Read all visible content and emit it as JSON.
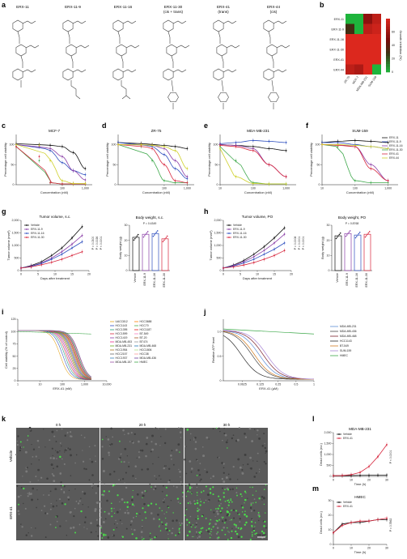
{
  "panel_letters": {
    "a": "a",
    "b": "b",
    "c": "c",
    "d": "d",
    "e": "e",
    "f": "f",
    "g": "g",
    "h": "h",
    "i": "i",
    "j": "j",
    "k": "k",
    "l": "l",
    "m": "m"
  },
  "colors": {
    "black": "#111111",
    "red": "#d7263d",
    "blue": "#2e4fbf",
    "purple": "#8b3fa8",
    "green": "#3da84a",
    "yellow": "#cfd02a",
    "gray": "#9aa0a6"
  },
  "compounds": [
    {
      "name": "ERX-11",
      "sub": ""
    },
    {
      "name": "ERX-11-9",
      "sub": ""
    },
    {
      "name": "ERX-11-16",
      "sub": ""
    },
    {
      "name": "ERX-11-30",
      "sub": "(cis + trans)"
    },
    {
      "name": "ERX-41",
      "sub": "(trans)"
    },
    {
      "name": "ERX-44",
      "sub": "(cis)"
    }
  ],
  "chart_data": [
    {
      "id": "b",
      "type": "heatmap",
      "rows": [
        "ERX-11",
        "ERX-11-9",
        "ERX-11-16",
        "ERX-11-30",
        "ERX-41",
        "ERX-44"
      ],
      "columns": [
        "ZR-75",
        "MCF-7",
        "MDA-MB-231",
        "SUM-159"
      ],
      "values": [
        [
          0,
          0,
          55,
          70
        ],
        [
          30,
          0,
          70,
          75
        ],
        [
          80,
          85,
          90,
          88
        ],
        [
          85,
          80,
          85,
          85
        ],
        [
          82,
          88,
          90,
          85
        ],
        [
          70,
          65,
          80,
          0
        ]
      ],
      "colorbar": {
        "label": "Growth inhibition (%)",
        "ticks": [
          "0",
          "20",
          "40",
          "60"
        ],
        "range": [
          0,
          80
        ]
      }
    },
    {
      "id": "c",
      "type": "line",
      "title": "MCF-7",
      "xlabel": "Concentration (nM)",
      "ylabel": "Percentage cell viability",
      "xscale": "log",
      "xlim": [
        1,
        2000
      ],
      "ylim": [
        0,
        125
      ],
      "xticks": [
        "100",
        "1,000"
      ],
      "yticks": [
        "0",
        "50",
        "100"
      ],
      "x": [
        1,
        10,
        30,
        100,
        300,
        1000
      ],
      "series": [
        {
          "key": "black",
          "values": [
            102,
            100,
            98,
            95,
            80,
            40
          ]
        },
        {
          "key": "blue",
          "values": [
            100,
            95,
            85,
            55,
            35,
            25
          ]
        },
        {
          "key": "purple",
          "values": [
            100,
            95,
            90,
            70,
            35,
            12
          ]
        },
        {
          "key": "green",
          "values": [
            95,
            60,
            5,
            2,
            2,
            2
          ]
        },
        {
          "key": "red",
          "values": [
            95,
            70,
            5,
            2,
            2,
            2
          ]
        },
        {
          "key": "yellow",
          "values": [
            100,
            98,
            60,
            10,
            3,
            3
          ]
        }
      ]
    },
    {
      "id": "d",
      "type": "line",
      "title": "ZR-75",
      "xlabel": "Concentration (nM)",
      "ylabel": "Percentage cell viability",
      "xscale": "log",
      "xlim": [
        1,
        2000
      ],
      "ylim": [
        0,
        125
      ],
      "xticks": [
        "100",
        "1,000"
      ],
      "yticks": [
        "0",
        "50",
        "100"
      ],
      "x": [
        1,
        10,
        30,
        100,
        300,
        1000
      ],
      "series": [
        {
          "key": "black",
          "values": [
            105,
            103,
            100,
            98,
            95,
            90
          ]
        },
        {
          "key": "blue",
          "values": [
            105,
            100,
            95,
            75,
            40,
            15
          ]
        },
        {
          "key": "purple",
          "values": [
            100,
            100,
            98,
            90,
            60,
            20
          ]
        },
        {
          "key": "green",
          "values": [
            100,
            95,
            60,
            10,
            5,
            5
          ]
        },
        {
          "key": "red",
          "values": [
            100,
            98,
            90,
            50,
            10,
            5
          ]
        },
        {
          "key": "yellow",
          "values": [
            100,
            100,
            98,
            95,
            85,
            40
          ]
        }
      ]
    },
    {
      "id": "e",
      "type": "line",
      "title": "MDA-MB-231",
      "xlabel": "Concentration (nM)",
      "ylabel": "Percentage cell viability",
      "xscale": "log",
      "xlim": [
        10,
        2000
      ],
      "ylim": [
        0,
        125
      ],
      "xticks": [
        "10",
        "100",
        "1,000"
      ],
      "yticks": [
        "0",
        "50",
        "100"
      ],
      "x": [
        10,
        30,
        100,
        300,
        1000
      ],
      "series": [
        {
          "key": "black",
          "values": [
            100,
            98,
            95,
            90,
            85
          ]
        },
        {
          "key": "blue",
          "values": [
            102,
            105,
            110,
            108,
            105
          ]
        },
        {
          "key": "purple",
          "values": [
            100,
            98,
            90,
            50,
            20
          ]
        },
        {
          "key": "green",
          "values": [
            95,
            60,
            5,
            2,
            2
          ]
        },
        {
          "key": "red",
          "values": [
            98,
            95,
            85,
            50,
            20
          ]
        },
        {
          "key": "yellow",
          "values": [
            90,
            20,
            3,
            2,
            2
          ]
        }
      ]
    },
    {
      "id": "f",
      "type": "line",
      "title": "SUM-159",
      "xlabel": "Concentration (nM)",
      "ylabel": "Percentage cell viability",
      "xscale": "log",
      "xlim": [
        10,
        2000
      ],
      "ylim": [
        0,
        125
      ],
      "xticks": [
        "10",
        "100",
        "1,000"
      ],
      "yticks": [
        "0",
        "50",
        "100"
      ],
      "x": [
        10,
        30,
        100,
        300,
        1000
      ],
      "series": [
        {
          "key": "black",
          "values": [
            105,
            108,
            110,
            108,
            105
          ]
        },
        {
          "key": "blue",
          "values": [
            105,
            105,
            100,
            95,
            90
          ]
        },
        {
          "key": "purple",
          "values": [
            100,
            100,
            95,
            50,
            10
          ]
        },
        {
          "key": "green",
          "values": [
            100,
            95,
            10,
            5,
            5
          ]
        },
        {
          "key": "red",
          "values": [
            100,
            98,
            95,
            40,
            10
          ]
        },
        {
          "key": "yellow",
          "values": [
            100,
            100,
            98,
            95,
            90
          ]
        }
      ],
      "legend": [
        "ERX-11",
        "ERX-11-9",
        "ERX-11-16",
        "ERX-11-30",
        "ERX-41",
        "ERX-44"
      ],
      "legend_keys": [
        "black",
        "blue",
        "purple",
        "green",
        "red",
        "yellow"
      ]
    },
    {
      "id": "g",
      "type": "line",
      "title": "Tumor volume, s.c.",
      "xlabel": "Days after treatment",
      "ylabel": "Tumor volume (mm³)",
      "xlim": [
        0,
        20
      ],
      "ylim": [
        0,
        2000
      ],
      "xticks": [
        "0",
        "5",
        "10",
        "15",
        "20"
      ],
      "yticks": [
        "0",
        "500",
        "1,000",
        "1,500",
        "2,000"
      ],
      "x": [
        0,
        3,
        6,
        9,
        12,
        15,
        18
      ],
      "series": [
        {
          "name": "Vehicle",
          "key": "black",
          "values": [
            100,
            200,
            350,
            600,
            900,
            1300,
            1750
          ]
        },
        {
          "name": "ERX-11-9",
          "key": "purple",
          "values": [
            100,
            180,
            300,
            500,
            750,
            1050,
            1400
          ]
        },
        {
          "name": "ERX-11-16",
          "key": "blue",
          "values": [
            100,
            170,
            280,
            450,
            650,
            900,
            1150
          ]
        },
        {
          "name": "ERX-11-30",
          "key": "red",
          "values": [
            100,
            150,
            230,
            330,
            450,
            600,
            750
          ]
        }
      ],
      "pvalues": [
        "P = 0.0300",
        "P = 0.0026",
        "P < 0.0001"
      ]
    },
    {
      "id": "g2",
      "type": "bar",
      "title": "Body weight, s.c.",
      "ylabel": "Body weight (g)",
      "ylim": [
        0,
        30
      ],
      "yticks": [
        "0",
        "10",
        "20",
        "30"
      ],
      "categories": [
        "Vehicle",
        "ERX-11-9",
        "ERX-11-16",
        "ERX-11-30"
      ],
      "values": [
        22,
        24,
        24.5,
        21
      ],
      "pvalue": "P = 0.4349"
    },
    {
      "id": "h",
      "type": "line",
      "title": "Tumor volume, PO",
      "xlabel": "Days after treatment",
      "ylabel": "Tumor volume (mm³)",
      "xlim": [
        0,
        20
      ],
      "ylim": [
        0,
        2000
      ],
      "xticks": [
        "0",
        "5",
        "10",
        "15",
        "20"
      ],
      "yticks": [
        "0",
        "500",
        "1,000",
        "1,500",
        "2,000"
      ],
      "x": [
        0,
        3,
        6,
        9,
        12,
        15,
        18
      ],
      "series": [
        {
          "name": "Vehicle",
          "key": "black",
          "values": [
            100,
            220,
            400,
            650,
            950,
            1300,
            1700
          ]
        },
        {
          "name": "ERX-11-9",
          "key": "purple",
          "values": [
            100,
            200,
            350,
            550,
            800,
            1100,
            1450
          ]
        },
        {
          "name": "ERX-11-16",
          "key": "blue",
          "values": [
            100,
            180,
            300,
            450,
            650,
            850,
            1100
          ]
        },
        {
          "name": "ERX-11-30",
          "key": "red",
          "values": [
            100,
            150,
            220,
            320,
            450,
            600,
            800
          ]
        }
      ],
      "pvalues": [
        "P = 0.0008",
        "P = 0.0001",
        "P < 0.0001"
      ]
    },
    {
      "id": "h2",
      "type": "bar",
      "title": "Body weight, PO",
      "ylabel": "Body weight (g)",
      "ylim": [
        0,
        30
      ],
      "yticks": [
        "0",
        "10",
        "20",
        "30"
      ],
      "categories": [
        "Vehicle",
        "ERX-11-9",
        "ERX-11-16",
        "ERX-11-30"
      ],
      "values": [
        23,
        24.5,
        23.5,
        24
      ],
      "pvalue": "P = 0.8768"
    },
    {
      "id": "i",
      "type": "line",
      "xlabel": "ERX-41 (nM)",
      "ylabel": "Cell viability (% of control)",
      "xscale": "log",
      "xlim": [
        1,
        10000
      ],
      "ylim": [
        0,
        125
      ],
      "xticks": [
        "1",
        "10",
        "100",
        "1,000",
        "10,000"
      ],
      "yticks": [
        "0",
        "25",
        "50",
        "75",
        "100",
        "125"
      ],
      "legend": [
        "UACC812",
        "HCC1143",
        "HCC1395",
        "HCC1599",
        "HCC1419",
        "MDA-MB-453",
        "MDA-MB-231",
        "HCC1954",
        "HCC2157",
        "HCC1937",
        "MDA-MB-157",
        "HCC3688",
        "HCC70",
        "HCC1187",
        "BT-549",
        "BT-20",
        "BT474",
        "MDA-MB-468",
        "HCC1806",
        "HCC38",
        "MDA-MB-436",
        "HMEC"
      ],
      "legend_colors": [
        "#e3a21a",
        "#2e4fbf",
        "#1b9e77",
        "#d7263d",
        "#8b3fa8",
        "#e7298a",
        "#66a61e",
        "#a6761d",
        "#666666",
        "#377eb8",
        "#984ea3",
        "#ff7f00",
        "#4daf4a",
        "#e41a1c",
        "#f781bf",
        "#a65628",
        "#999999",
        "#1f78b4",
        "#b2df8a",
        "#fb9a99",
        "#6a3d9a",
        "#3da84a"
      ]
    },
    {
      "id": "j",
      "type": "line",
      "xlabel": "ERX-41 (μM)",
      "ylabel": "Relative ATP level",
      "xscale": "log",
      "xlim": [
        0.03,
        1
      ],
      "ylim": [
        0,
        1.25
      ],
      "xticks": [
        "0.0625",
        "0.125",
        "0.25",
        "0.5",
        "1"
      ],
      "yticks": [
        "0",
        "0.5",
        "1.0"
      ],
      "legend": [
        "MDA-MB-231",
        "MDA-MB-436",
        "MDA-MB-468",
        "HCC1143",
        "BT-549",
        "SUM-159",
        "HMEC"
      ],
      "legend_colors": [
        "#5b8dd6",
        "#4a4a4a",
        "#7a1f2b",
        "#2a2a2a",
        "#d07a20",
        "#a884d6",
        "#3da84a"
      ]
    },
    {
      "id": "l",
      "type": "line",
      "title": "MDA-MB-231",
      "xlabel": "Time (h)",
      "ylabel": "Dead cells (no.)",
      "xlim": [
        0,
        30
      ],
      "ylim": [
        0,
        2000
      ],
      "xticks": [
        "0",
        "10",
        "20",
        "30"
      ],
      "yticks": [
        "0",
        "500",
        "1,000",
        "1,500",
        "2,000"
      ],
      "x": [
        0,
        5,
        10,
        15,
        20,
        25,
        30
      ],
      "series": [
        {
          "name": "Vehicle",
          "key": "black",
          "values": [
            30,
            35,
            40,
            45,
            50,
            55,
            60
          ]
        },
        {
          "name": "ERX-41",
          "key": "red",
          "values": [
            30,
            40,
            80,
            180,
            450,
            900,
            1450
          ]
        }
      ],
      "pvalue": "P < 0.0001"
    },
    {
      "id": "m",
      "type": "line",
      "title": "HMEC",
      "xlabel": "Time (h)",
      "ylabel": "Dead cells (no.)",
      "xlim": [
        0,
        30
      ],
      "ylim": [
        0,
        30
      ],
      "xticks": [
        "0",
        "10",
        "20",
        "30"
      ],
      "yticks": [
        "0",
        "10",
        "20",
        "30"
      ],
      "x": [
        0,
        5,
        10,
        15,
        20,
        25,
        30
      ],
      "series": [
        {
          "name": "Vehicle",
          "key": "black",
          "values": [
            8,
            14,
            15,
            15,
            16,
            17,
            17
          ]
        },
        {
          "name": "ERX-41",
          "key": "red",
          "values": [
            8,
            13,
            15,
            16,
            16,
            17,
            18
          ]
        }
      ],
      "pvalue": "P = 0.7862"
    }
  ],
  "panel_k": {
    "col_labels": [
      "0 h",
      "20 h",
      "30 h"
    ],
    "row_labels": [
      "Vehicle",
      "ERX-41"
    ],
    "scale_bar": "100 μm"
  }
}
